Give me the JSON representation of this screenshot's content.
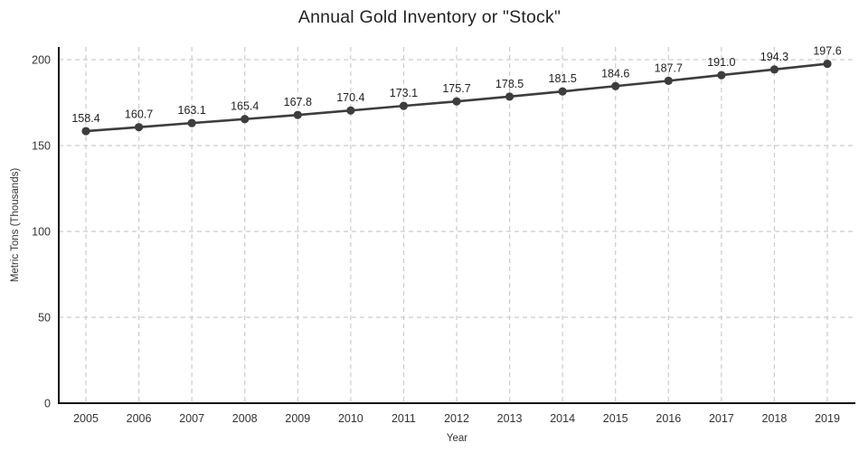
{
  "chart_data": {
    "type": "line",
    "title": "Annual Gold Inventory or \"Stock\"",
    "xlabel": "Year",
    "ylabel": "Metric Tons (Thousands)",
    "categories": [
      "2005",
      "2006",
      "2007",
      "2008",
      "2009",
      "2010",
      "2011",
      "2012",
      "2013",
      "2014",
      "2015",
      "2016",
      "2017",
      "2018",
      "2019"
    ],
    "values": [
      158.4,
      160.7,
      163.1,
      165.4,
      167.8,
      170.4,
      173.1,
      175.7,
      178.5,
      181.5,
      184.6,
      187.7,
      191.0,
      194.3,
      197.6
    ],
    "ylim": [
      0,
      200
    ],
    "yticks": [
      0,
      50,
      100,
      150,
      200
    ],
    "grid": "dashed",
    "legend": "none",
    "colors": {
      "line": "#3d3d3d",
      "point": "#3d3d3d",
      "grid": "#cccccc",
      "axis": "#111111",
      "tick_text": "#333333",
      "label_text": "#222222",
      "background": "#ffffff"
    }
  }
}
